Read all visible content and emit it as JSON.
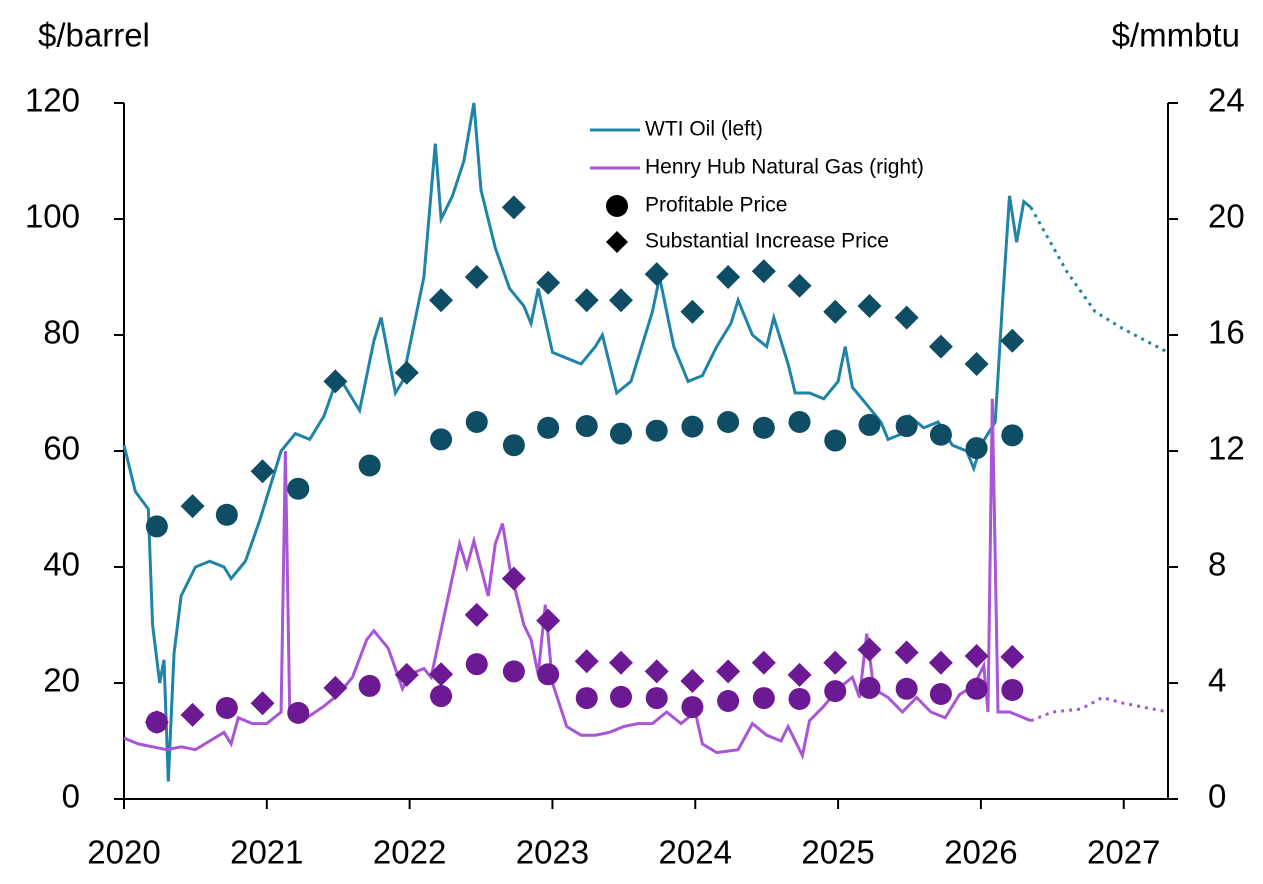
{
  "chart_data": {
    "type": "line",
    "y_label": "$/barrel",
    "y2_label": "$/mmbtu",
    "xlim": [
      2020,
      2027.31
    ],
    "xticks": [
      2020,
      2021,
      2022,
      2023,
      2024,
      2025,
      2026,
      2027
    ],
    "ylim": [
      0,
      120
    ],
    "yticks": [
      0,
      20,
      40,
      60,
      80,
      100,
      120
    ],
    "y2lim": [
      0,
      24
    ],
    "y2ticks": [
      0,
      4,
      8,
      12,
      16,
      20,
      24
    ],
    "series": [
      {
        "name": "WTI Oil (left)",
        "color": "#1f84a8",
        "x": [
          2020.0,
          2020.08,
          2020.17,
          2020.2,
          2020.25,
          2020.28,
          2020.31,
          2020.35,
          2020.4,
          2020.5,
          2020.6,
          2020.7,
          2020.75,
          2020.85,
          2020.95,
          2021.0,
          2021.1,
          2021.2,
          2021.3,
          2021.4,
          2021.5,
          2021.6,
          2021.65,
          2021.75,
          2021.8,
          2021.9,
          2021.95,
          2022.0,
          2022.1,
          2022.18,
          2022.22,
          2022.3,
          2022.38,
          2022.45,
          2022.5,
          2022.6,
          2022.7,
          2022.8,
          2022.85,
          2022.9,
          2023.0,
          2023.1,
          2023.2,
          2023.3,
          2023.35,
          2023.45,
          2023.55,
          2023.7,
          2023.75,
          2023.85,
          2023.95,
          2024.05,
          2024.15,
          2024.25,
          2024.3,
          2024.4,
          2024.5,
          2024.55,
          2024.65,
          2024.7,
          2024.8,
          2024.9,
          2025.0,
          2025.05,
          2025.1,
          2025.2,
          2025.3,
          2025.35,
          2025.45,
          2025.5,
          2025.6,
          2025.7,
          2025.8,
          2025.9,
          2025.95,
          2026.0,
          2026.1,
          2026.15,
          2026.2,
          2026.25,
          2026.3,
          2026.35
        ],
        "values": [
          61,
          53,
          50,
          30,
          20,
          24,
          3,
          25,
          35,
          40,
          41,
          40,
          38,
          41,
          48,
          52,
          60,
          63,
          62,
          66,
          73,
          69,
          67,
          79,
          83,
          70,
          72,
          78,
          90,
          113,
          100,
          104,
          110,
          120,
          105,
          95,
          88,
          85,
          82,
          88,
          77,
          76,
          75,
          78,
          80,
          70,
          72,
          84,
          90,
          78,
          72,
          73,
          78,
          82,
          86,
          80,
          78,
          83,
          75,
          70,
          70,
          69,
          72,
          78,
          71,
          68,
          65,
          62,
          63,
          66,
          64,
          65,
          61,
          60,
          57,
          61,
          65,
          85,
          104,
          96,
          103,
          102
        ]
      },
      {
        "name": "Henry Hub Natural Gas (right)",
        "color": "#a855d6",
        "axis": "y2",
        "x": [
          2020.0,
          2020.1,
          2020.2,
          2020.3,
          2020.4,
          2020.5,
          2020.6,
          2020.7,
          2020.75,
          2020.8,
          2020.9,
          2021.0,
          2021.1,
          2021.13,
          2021.16,
          2021.25,
          2021.4,
          2021.5,
          2021.6,
          2021.7,
          2021.75,
          2021.85,
          2021.95,
          2022.0,
          2022.1,
          2022.15,
          2022.25,
          2022.35,
          2022.4,
          2022.45,
          2022.55,
          2022.6,
          2022.65,
          2022.7,
          2022.8,
          2022.85,
          2022.9,
          2022.95,
          2023.0,
          2023.1,
          2023.2,
          2023.3,
          2023.4,
          2023.5,
          2023.6,
          2023.7,
          2023.8,
          2023.9,
          2024.0,
          2024.05,
          2024.15,
          2024.3,
          2024.4,
          2024.5,
          2024.6,
          2024.65,
          2024.75,
          2024.8,
          2024.9,
          2025.0,
          2025.1,
          2025.15,
          2025.2,
          2025.25,
          2025.35,
          2025.45,
          2025.55,
          2025.65,
          2025.75,
          2025.85,
          2025.95,
          2026.02,
          2026.05,
          2026.08,
          2026.12,
          2026.2,
          2026.3,
          2026.35
        ],
        "values": [
          2.1,
          1.9,
          1.8,
          1.7,
          1.8,
          1.7,
          2.0,
          2.3,
          1.9,
          2.8,
          2.6,
          2.6,
          3.0,
          12.0,
          3.0,
          2.7,
          3.2,
          3.6,
          4.2,
          5.5,
          5.8,
          5.2,
          3.8,
          4.3,
          4.5,
          4.2,
          6.5,
          8.8,
          8.0,
          8.9,
          7.0,
          8.8,
          9.5,
          8.0,
          6.0,
          5.5,
          4.3,
          6.7,
          4.0,
          2.5,
          2.2,
          2.2,
          2.3,
          2.5,
          2.6,
          2.6,
          3.0,
          2.6,
          3.0,
          1.9,
          1.6,
          1.7,
          2.6,
          2.2,
          2.0,
          2.5,
          1.5,
          2.7,
          3.2,
          3.8,
          4.2,
          3.5,
          5.7,
          3.8,
          3.5,
          3.0,
          3.5,
          3.0,
          2.8,
          3.6,
          3.9,
          4.6,
          3.0,
          13.8,
          3.0,
          3.0,
          2.8,
          2.7
        ]
      },
      {
        "color": "#1f84a8",
        "style": "dotted",
        "x": [
          2026.35,
          2026.6,
          2026.8,
          2027.0,
          2027.31
        ],
        "values": [
          102,
          91,
          84,
          81,
          77
        ]
      },
      {
        "color": "#a855d6",
        "style": "dotted",
        "axis": "y2",
        "x": [
          2026.35,
          2026.5,
          2026.7,
          2026.85,
          2027.0,
          2027.31
        ],
        "values": [
          2.7,
          3.0,
          3.1,
          3.5,
          3.3,
          3.0
        ]
      }
    ],
    "markers": [
      {
        "name": "Profitable Price",
        "shape": "circle",
        "legend_color": "#000000",
        "groups": [
          {
            "color": "#0e4d64",
            "x": [
              2020.23,
              2020.72,
              2021.22,
              2021.72,
              2022.22,
              2022.47,
              2022.73,
              2022.97,
              2023.24,
              2023.48,
              2023.73,
              2023.98,
              2024.23,
              2024.48,
              2024.73,
              2024.98,
              2025.22,
              2025.48,
              2025.72,
              2025.97,
              2026.22
            ],
            "values": [
              47,
              49,
              53.5,
              57.5,
              62,
              65,
              61,
              64,
              64.3,
              63,
              63.5,
              64.2,
              65,
              64,
              65,
              61.8,
              64.5,
              64.3,
              62.8,
              60.5,
              62.7
            ]
          },
          {
            "color": "#6c1a93",
            "axis": "y2",
            "x": [
              2020.23,
              2020.72,
              2021.22,
              2021.72,
              2022.22,
              2022.47,
              2022.73,
              2022.97,
              2023.24,
              2023.48,
              2023.73,
              2023.98,
              2024.23,
              2024.48,
              2024.73,
              2024.98,
              2025.22,
              2025.48,
              2025.72,
              2025.97,
              2026.22
            ],
            "values": [
              2.65,
              3.14,
              2.97,
              3.9,
              3.55,
              4.65,
              4.4,
              4.3,
              3.48,
              3.52,
              3.48,
              3.17,
              3.38,
              3.48,
              3.45,
              3.72,
              3.83,
              3.8,
              3.62,
              3.8,
              3.76
            ]
          }
        ]
      },
      {
        "name": "Substantial Increase Price",
        "shape": "diamond",
        "legend_color": "#000000",
        "groups": [
          {
            "color": "#0e4d64",
            "x": [
              2020.48,
              2020.97,
              2021.48,
              2021.98,
              2022.22,
              2022.47,
              2022.73,
              2022.97,
              2023.24,
              2023.48,
              2023.73,
              2023.98,
              2024.23,
              2024.48,
              2024.73,
              2024.98,
              2025.22,
              2025.48,
              2025.72,
              2025.97,
              2026.22
            ],
            "values": [
              50.5,
              56.5,
              72,
              73.5,
              86,
              90,
              102,
              89,
              86,
              86,
              90.5,
              84,
              90,
              91,
              88.5,
              84,
              85,
              83,
              78,
              75,
              79
            ]
          },
          {
            "color": "#6c1a93",
            "axis": "y2",
            "x": [
              2020.23,
              2020.48,
              2020.97,
              2021.48,
              2021.98,
              2022.22,
              2022.47,
              2022.73,
              2022.97,
              2023.24,
              2023.48,
              2023.73,
              2023.98,
              2024.23,
              2024.48,
              2024.73,
              2024.98,
              2025.22,
              2025.48,
              2025.72,
              2025.97,
              2026.22
            ],
            "values": [
              2.65,
              2.9,
              3.3,
              3.83,
              4.28,
              4.3,
              6.35,
              7.6,
              6.15,
              4.75,
              4.7,
              4.4,
              4.07,
              4.4,
              4.7,
              4.28,
              4.7,
              5.15,
              5.05,
              4.7,
              4.93,
              4.9
            ]
          }
        ]
      }
    ]
  }
}
